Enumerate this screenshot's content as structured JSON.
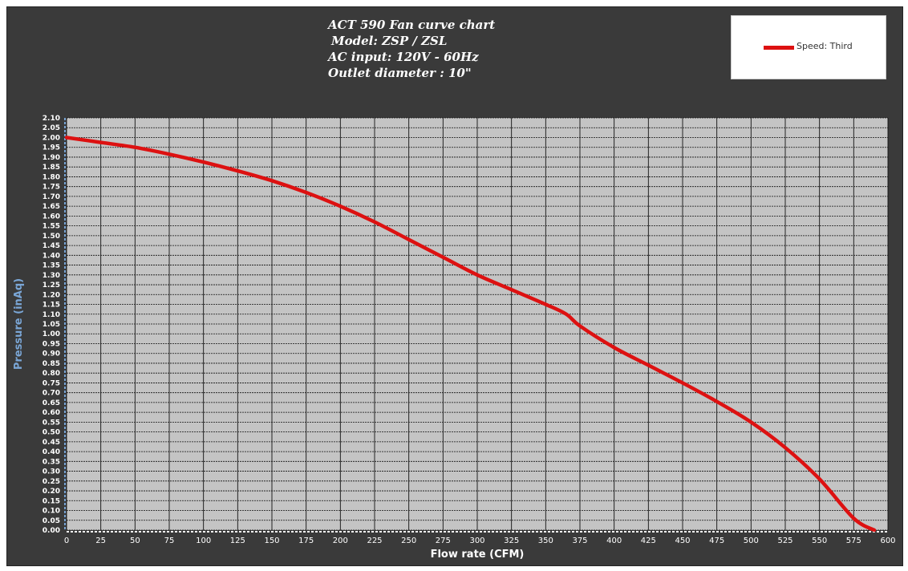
{
  "title_lines": [
    "ACT 590 Fan curve chart",
    "Model: ZSP / ZSL",
    "AC input: 120V - 60Hz",
    "Outlet diameter : 10\""
  ],
  "colors": {
    "background": "#3a3a3a",
    "plot_area": "#c4c4c4",
    "series": "#dd1111",
    "ylabel": "#7aa6d6",
    "text": "#ffffff"
  },
  "chart_data": {
    "type": "line",
    "xlabel": "Flow rate (CFM)",
    "ylabel": "Pressure (inAq)",
    "xlim": [
      0,
      600
    ],
    "ylim": [
      0,
      2.1
    ],
    "x_ticks": [
      "0",
      "25",
      "50",
      "75",
      "100",
      "125",
      "150",
      "175",
      "200",
      "225",
      "250",
      "275",
      "300",
      "325",
      "350",
      "375",
      "400",
      "425",
      "450",
      "475",
      "500",
      "525",
      "550",
      "575",
      "600"
    ],
    "y_ticks": [
      "0.00",
      "0.05",
      "0.10",
      "0.15",
      "0.20",
      "0.25",
      "0.30",
      "0.35",
      "0.40",
      "0.45",
      "0.50",
      "0.55",
      "0.60",
      "0.65",
      "0.70",
      "0.75",
      "0.80",
      "0.85",
      "0.90",
      "0.95",
      "1.00",
      "1.05",
      "1.10",
      "1.15",
      "1.20",
      "1.25",
      "1.30",
      "1.35",
      "1.40",
      "1.45",
      "1.50",
      "1.55",
      "1.60",
      "1.65",
      "1.70",
      "1.75",
      "1.80",
      "1.85",
      "1.90",
      "1.95",
      "2.00",
      "2.05",
      "2.10"
    ],
    "grid": true,
    "legend": "top-right",
    "series": [
      {
        "name": "Speed: Third",
        "color": "#dd1111",
        "x": [
          0,
          25,
          50,
          75,
          100,
          125,
          150,
          175,
          200,
          225,
          250,
          275,
          300,
          325,
          350,
          365,
          375,
          400,
          425,
          450,
          475,
          500,
          525,
          550,
          575,
          590
        ],
        "y": [
          2.0,
          1.975,
          1.95,
          1.915,
          1.875,
          1.83,
          1.78,
          1.72,
          1.65,
          1.57,
          1.48,
          1.39,
          1.3,
          1.225,
          1.15,
          1.1,
          1.04,
          0.93,
          0.84,
          0.75,
          0.655,
          0.55,
          0.42,
          0.26,
          0.06,
          0.0
        ]
      }
    ]
  }
}
